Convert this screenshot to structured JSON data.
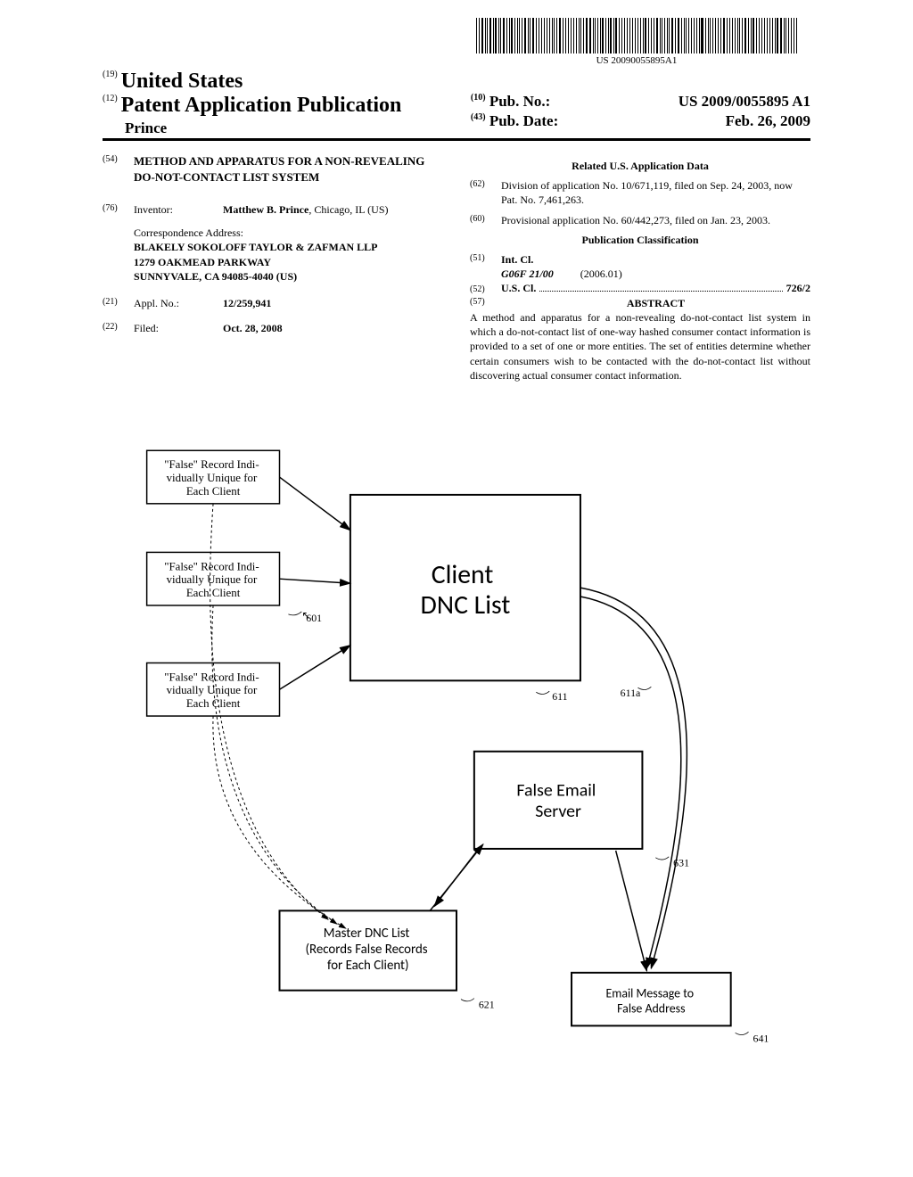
{
  "barcode_text": "US 20090055895A1",
  "barcode_pattern": [
    2,
    1,
    4,
    1,
    2,
    3,
    1,
    2,
    1,
    1,
    4,
    2,
    1,
    3,
    2,
    1,
    1,
    2,
    3,
    1,
    2,
    4,
    1,
    2,
    1,
    3,
    2,
    1,
    1,
    2,
    1,
    4,
    2,
    1,
    3,
    1,
    2,
    2,
    1,
    1,
    3,
    2,
    4,
    1,
    2,
    1,
    1,
    3,
    2,
    1,
    2,
    1,
    4,
    2,
    1,
    3,
    1,
    2,
    1,
    2,
    3,
    1,
    1,
    4,
    2,
    1,
    2,
    3,
    1,
    2,
    1,
    1,
    2,
    4,
    1,
    3,
    2,
    1,
    1,
    2,
    3,
    1,
    2,
    1,
    4,
    2,
    1,
    1,
    3,
    2,
    1,
    2,
    4,
    1,
    2,
    3,
    1,
    1,
    2,
    1,
    3,
    2,
    1,
    4,
    2,
    1,
    3,
    1,
    2,
    1,
    2,
    1,
    3,
    4,
    1,
    2,
    1,
    1,
    3,
    2
  ],
  "header": {
    "country_code": "(19)",
    "country": "United States",
    "pub_type_code": "(12)",
    "pub_type": "Patent Application Publication",
    "author": "Prince",
    "pubno_code": "(10)",
    "pubno_label": "Pub. No.:",
    "pubno": "US 2009/0055895 A1",
    "pubdate_code": "(43)",
    "pubdate_label": "Pub. Date:",
    "pubdate": "Feb. 26, 2009"
  },
  "left": {
    "title_code": "(54)",
    "title": "METHOD AND APPARATUS FOR A NON-REVEALING DO-NOT-CONTACT LIST SYSTEM",
    "inventor_code": "(76)",
    "inventor_label": "Inventor:",
    "inventor": "Matthew B. Prince",
    "inventor_loc": ", Chicago, IL (US)",
    "corr_label": "Correspondence Address:",
    "corr_name": "BLAKELY SOKOLOFF TAYLOR & ZAFMAN LLP",
    "corr_street": "1279 OAKMEAD PARKWAY",
    "corr_city": "SUNNYVALE, CA 94085-4040 (US)",
    "applno_code": "(21)",
    "applno_label": "Appl. No.:",
    "applno": "12/259,941",
    "filed_code": "(22)",
    "filed_label": "Filed:",
    "filed": "Oct. 28, 2008"
  },
  "right": {
    "related_title": "Related U.S. Application Data",
    "div_code": "(62)",
    "div_text": "Division of application No. 10/671,119, filed on Sep. 24, 2003, now Pat. No. 7,461,263.",
    "prov_code": "(60)",
    "prov_text": "Provisional application No. 60/442,273, filed on Jan. 23, 2003.",
    "classif_title": "Publication Classification",
    "intcl_code": "(51)",
    "intcl_label": "Int. Cl.",
    "intcl_class": "G06F 21/00",
    "intcl_date": "(2006.01)",
    "uscl_code": "(52)",
    "uscl_label": "U.S. Cl.",
    "uscl_val": "726/2",
    "abstract_code": "(57)",
    "abstract_label": "ABSTRACT",
    "abstract_text": "A method and apparatus for a non-revealing do-not-contact list system in which a do-not-contact list of one-way hashed consumer contact information is provided to a set of one or more entities. The set of entities determine whether certain consumers wish to be contacted with the do-not-contact list without discovering actual consumer contact information."
  },
  "diagram": {
    "boxes": {
      "false1": "\"False\" Record Individually Unique for Each Client",
      "false2": "\"False\" Record Individually Unique for Each Client",
      "false3": "\"False\" Record Individually Unique for Each Client",
      "client_dnc": "Client\nDNC List",
      "false_server": "False Email\nServer",
      "master_dnc": "Master DNC List\n(Records False Records\nfor Each Client)",
      "email_msg": "Email Message to\nFalse Address"
    },
    "labels": {
      "ref601": "601",
      "ref611": "611",
      "ref611a": "611a",
      "ref631": "631",
      "ref621": "621",
      "ref641": "641"
    },
    "colors": {
      "line": "#000000",
      "bg": "#ffffff"
    }
  }
}
